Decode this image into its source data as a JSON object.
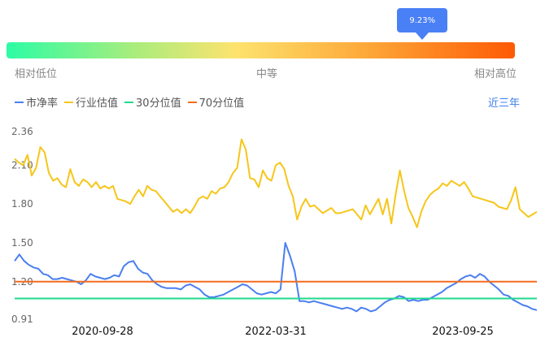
{
  "gauge": {
    "marker_value": "9.23%",
    "marker_fraction": 0.818,
    "low_label": "相对低位",
    "mid_label": "中等",
    "high_label": "相对高位"
  },
  "legend": [
    {
      "label": "市净率",
      "color": "#4a7ff0"
    },
    {
      "label": "行业估值",
      "color": "#f6c619"
    },
    {
      "label": "30分位值",
      "color": "#1ed98e"
    },
    {
      "label": "70分位值",
      "color": "#f46b1c"
    }
  ],
  "range_selector": "近三年",
  "chart_data": {
    "type": "line",
    "y_ticks": [
      "2.36",
      "2.10",
      "1.80",
      "1.50",
      "1.20",
      "0.91"
    ],
    "x_ticks": [
      "2020-09-28",
      "2022-03-31",
      "2023-09-25"
    ],
    "ylim": [
      0.91,
      2.36
    ],
    "series": [
      {
        "name": "行业估值",
        "color": "#f6c619",
        "values": [
          2.15,
          2.12,
          2.1,
          2.18,
          2.02,
          2.08,
          2.24,
          2.2,
          2.04,
          1.98,
          2.0,
          1.95,
          1.93,
          2.07,
          1.97,
          1.94,
          1.99,
          1.97,
          1.93,
          1.97,
          1.92,
          1.94,
          1.92,
          1.94,
          1.84,
          1.83,
          1.82,
          1.8,
          1.86,
          1.91,
          1.86,
          1.94,
          1.91,
          1.9,
          1.86,
          1.82,
          1.78,
          1.74,
          1.76,
          1.73,
          1.76,
          1.73,
          1.78,
          1.84,
          1.86,
          1.84,
          1.9,
          1.88,
          1.92,
          1.93,
          1.97,
          2.04,
          2.08,
          2.3,
          2.22,
          2.0,
          1.99,
          1.93,
          2.06,
          2.0,
          1.98,
          2.1,
          2.12,
          2.07,
          1.94,
          1.86,
          1.68,
          1.78,
          1.84,
          1.78,
          1.79,
          1.76,
          1.73,
          1.75,
          1.77,
          1.73,
          1.73,
          1.74,
          1.75,
          1.76,
          1.72,
          1.68,
          1.79,
          1.72,
          1.78,
          1.84,
          1.72,
          1.84,
          1.65,
          1.87,
          2.06,
          1.9,
          1.77,
          1.7,
          1.62,
          1.74,
          1.82,
          1.87,
          1.9,
          1.92,
          1.96,
          1.94,
          1.98,
          1.96,
          1.94,
          1.97,
          1.92,
          1.86,
          1.85,
          1.84,
          1.83,
          1.82,
          1.81,
          1.78,
          1.77,
          1.76,
          1.83,
          1.93,
          1.76,
          1.73,
          1.7,
          1.72,
          1.74
        ]
      },
      {
        "name": "市净率",
        "color": "#4a7ff0",
        "values": [
          1.36,
          1.41,
          1.36,
          1.33,
          1.31,
          1.3,
          1.26,
          1.25,
          1.22,
          1.22,
          1.23,
          1.22,
          1.21,
          1.2,
          1.18,
          1.21,
          1.26,
          1.24,
          1.23,
          1.22,
          1.23,
          1.25,
          1.24,
          1.32,
          1.35,
          1.36,
          1.3,
          1.27,
          1.26,
          1.21,
          1.18,
          1.16,
          1.15,
          1.15,
          1.15,
          1.14,
          1.17,
          1.18,
          1.16,
          1.14,
          1.1,
          1.08,
          1.08,
          1.09,
          1.1,
          1.12,
          1.14,
          1.16,
          1.18,
          1.17,
          1.14,
          1.11,
          1.1,
          1.11,
          1.12,
          1.11,
          1.14,
          1.5,
          1.4,
          1.28,
          1.05,
          1.05,
          1.04,
          1.05,
          1.04,
          1.03,
          1.02,
          1.01,
          1.0,
          0.99,
          1.0,
          0.99,
          0.97,
          1.0,
          0.99,
          0.97,
          0.98,
          1.01,
          1.04,
          1.06,
          1.07,
          1.09,
          1.08,
          1.05,
          1.06,
          1.05,
          1.06,
          1.06,
          1.08,
          1.1,
          1.12,
          1.15,
          1.17,
          1.19,
          1.22,
          1.24,
          1.25,
          1.23,
          1.26,
          1.24,
          1.2,
          1.17,
          1.14,
          1.1,
          1.09,
          1.06,
          1.04,
          1.02,
          1.01,
          0.99,
          0.98
        ]
      },
      {
        "name": "30分位值",
        "color": "#1ed98e",
        "values": [
          1.07
        ]
      },
      {
        "name": "70分位值",
        "color": "#f46b1c",
        "values": [
          1.2
        ]
      }
    ]
  }
}
